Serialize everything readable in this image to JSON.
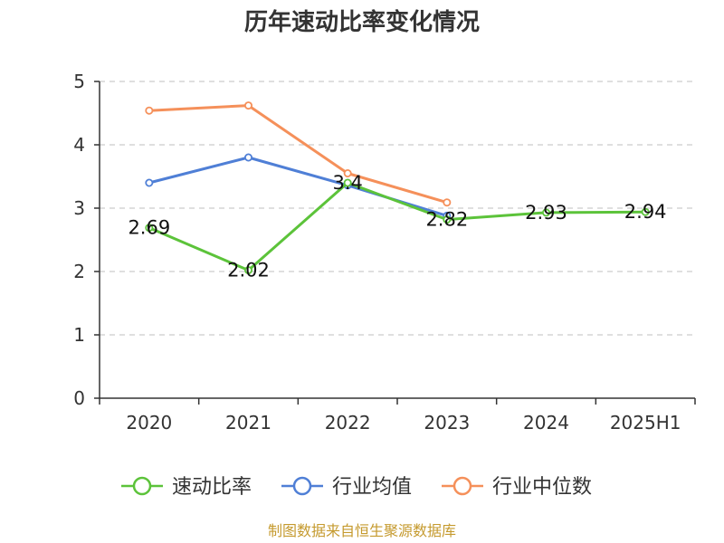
{
  "chart_data": {
    "type": "line",
    "title": "历年速动比率变化情况",
    "categories": [
      "2020",
      "2021",
      "2022",
      "2023",
      "2024",
      "2025H1"
    ],
    "ylim": [
      0,
      5
    ],
    "yticks": [
      "0",
      "1",
      "2",
      "3",
      "4",
      "5"
    ],
    "grid": true,
    "legend_position": "bottom",
    "series": [
      {
        "name": "速动比率",
        "color": "#5cc33a",
        "values": [
          2.69,
          2.02,
          3.4,
          2.82,
          2.93,
          2.94
        ],
        "labels": [
          "2.69",
          "2.02",
          "3.4",
          "2.82",
          "2.93",
          "2.94"
        ]
      },
      {
        "name": "行业均值",
        "color": "#4f7fd6",
        "values": [
          3.4,
          3.8,
          3.36,
          2.88,
          null,
          null
        ]
      },
      {
        "name": "行业中位数",
        "color": "#f5905a",
        "values": [
          4.54,
          4.62,
          3.55,
          3.09,
          null,
          null
        ]
      }
    ]
  },
  "source": "制图数据来自恒生聚源数据库"
}
